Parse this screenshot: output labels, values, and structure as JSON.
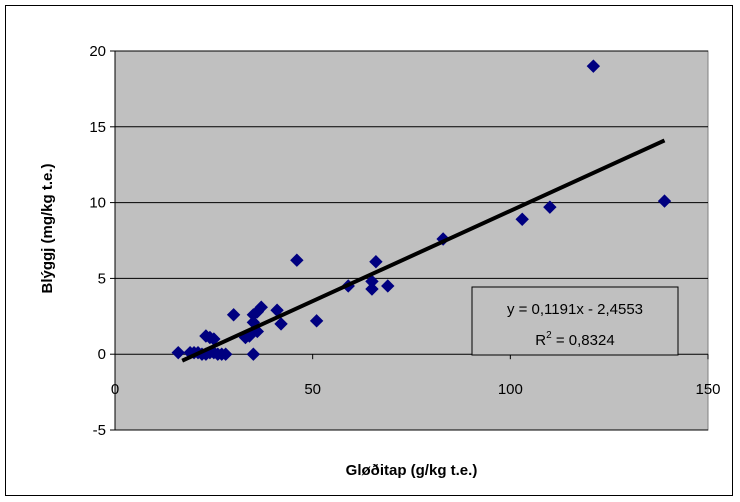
{
  "chart_data": {
    "type": "scatter",
    "title": "",
    "xlabel": "Gløðitap (g/kg t.e.)",
    "ylabel": "Blýggj (mg/kg t.e.)",
    "xlim": [
      0,
      150
    ],
    "ylim": [
      -5,
      20
    ],
    "x_ticks": [
      0,
      50,
      100,
      150
    ],
    "y_ticks": [
      -5,
      0,
      5,
      10,
      15,
      20
    ],
    "x_tick_labels": [
      "0",
      "50",
      "100",
      "150"
    ],
    "y_tick_labels": [
      "-5",
      "0",
      "5",
      "10",
      "15",
      "20"
    ],
    "grid": "horizontal",
    "plot_background": "#c0c0c0",
    "marker_color": "#000080",
    "points": [
      {
        "x": 16,
        "y": 0.1
      },
      {
        "x": 19,
        "y": 0.1
      },
      {
        "x": 20,
        "y": 0.1
      },
      {
        "x": 21,
        "y": 0.1
      },
      {
        "x": 22,
        "y": 0.0
      },
      {
        "x": 23,
        "y": 0.0
      },
      {
        "x": 24,
        "y": 0.1
      },
      {
        "x": 25,
        "y": 0.1
      },
      {
        "x": 23,
        "y": 1.2
      },
      {
        "x": 24,
        "y": 1.1
      },
      {
        "x": 25,
        "y": 1.0
      },
      {
        "x": 26,
        "y": 0.0
      },
      {
        "x": 27,
        "y": 0.0
      },
      {
        "x": 28,
        "y": 0.0
      },
      {
        "x": 30,
        "y": 2.6
      },
      {
        "x": 33,
        "y": 1.1
      },
      {
        "x": 34,
        "y": 1.2
      },
      {
        "x": 35,
        "y": 2.6
      },
      {
        "x": 35,
        "y": 2.1
      },
      {
        "x": 35,
        "y": 0.0
      },
      {
        "x": 36,
        "y": 1.5
      },
      {
        "x": 36,
        "y": 2.8
      },
      {
        "x": 37,
        "y": 3.1
      },
      {
        "x": 41,
        "y": 2.9
      },
      {
        "x": 42,
        "y": 2.0
      },
      {
        "x": 46,
        "y": 6.2
      },
      {
        "x": 51,
        "y": 2.2
      },
      {
        "x": 59,
        "y": 4.5
      },
      {
        "x": 65,
        "y": 4.8
      },
      {
        "x": 65,
        "y": 4.3
      },
      {
        "x": 66,
        "y": 6.1
      },
      {
        "x": 69,
        "y": 4.5
      },
      {
        "x": 83,
        "y": 7.6
      },
      {
        "x": 103,
        "y": 8.9
      },
      {
        "x": 110,
        "y": 9.7
      },
      {
        "x": 121,
        "y": 19.0
      },
      {
        "x": 139,
        "y": 10.1
      }
    ],
    "trendline": {
      "type": "linear",
      "slope": 0.1191,
      "intercept": -2.4553,
      "x_range": [
        17,
        139
      ],
      "color": "#000000"
    },
    "annotation": {
      "equation": "y = 0,1191x - 2,4553",
      "r2_prefix": "R",
      "r2_sup": "2",
      "r2_suffix": " = 0,8324"
    }
  }
}
